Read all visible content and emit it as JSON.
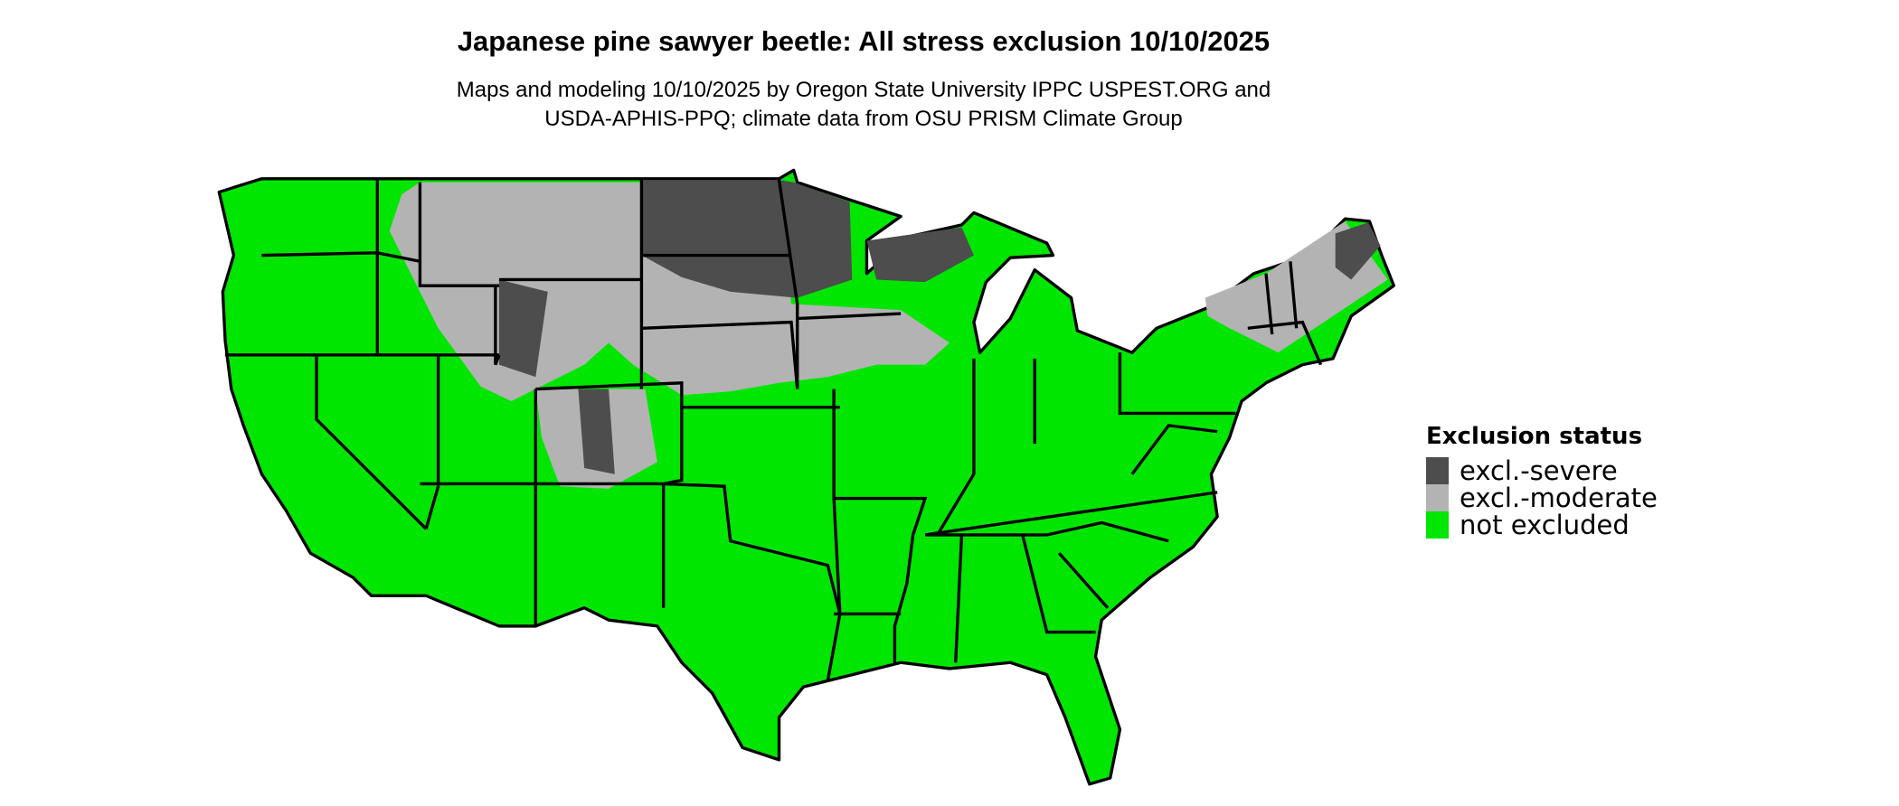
{
  "title": "Japanese pine sawyer beetle: All stress exclusion 10/10/2025",
  "subtitle_lines": [
    "Maps and modeling 10/10/2025 by Oregon State University IPPC USPEST.ORG and",
    "USDA-APHIS-PPQ; climate data from OSU PRISM Climate Group"
  ],
  "legend": {
    "title": "Exclusion status",
    "items": [
      {
        "label": "excl.-severe",
        "color": "#4d4d4d"
      },
      {
        "label": "excl.-moderate",
        "color": "#b3b3b3"
      },
      {
        "label": "not excluded",
        "color": "#00e600"
      }
    ]
  },
  "map": {
    "region": "Contiguous United States",
    "boundary_color": "#000000"
  }
}
